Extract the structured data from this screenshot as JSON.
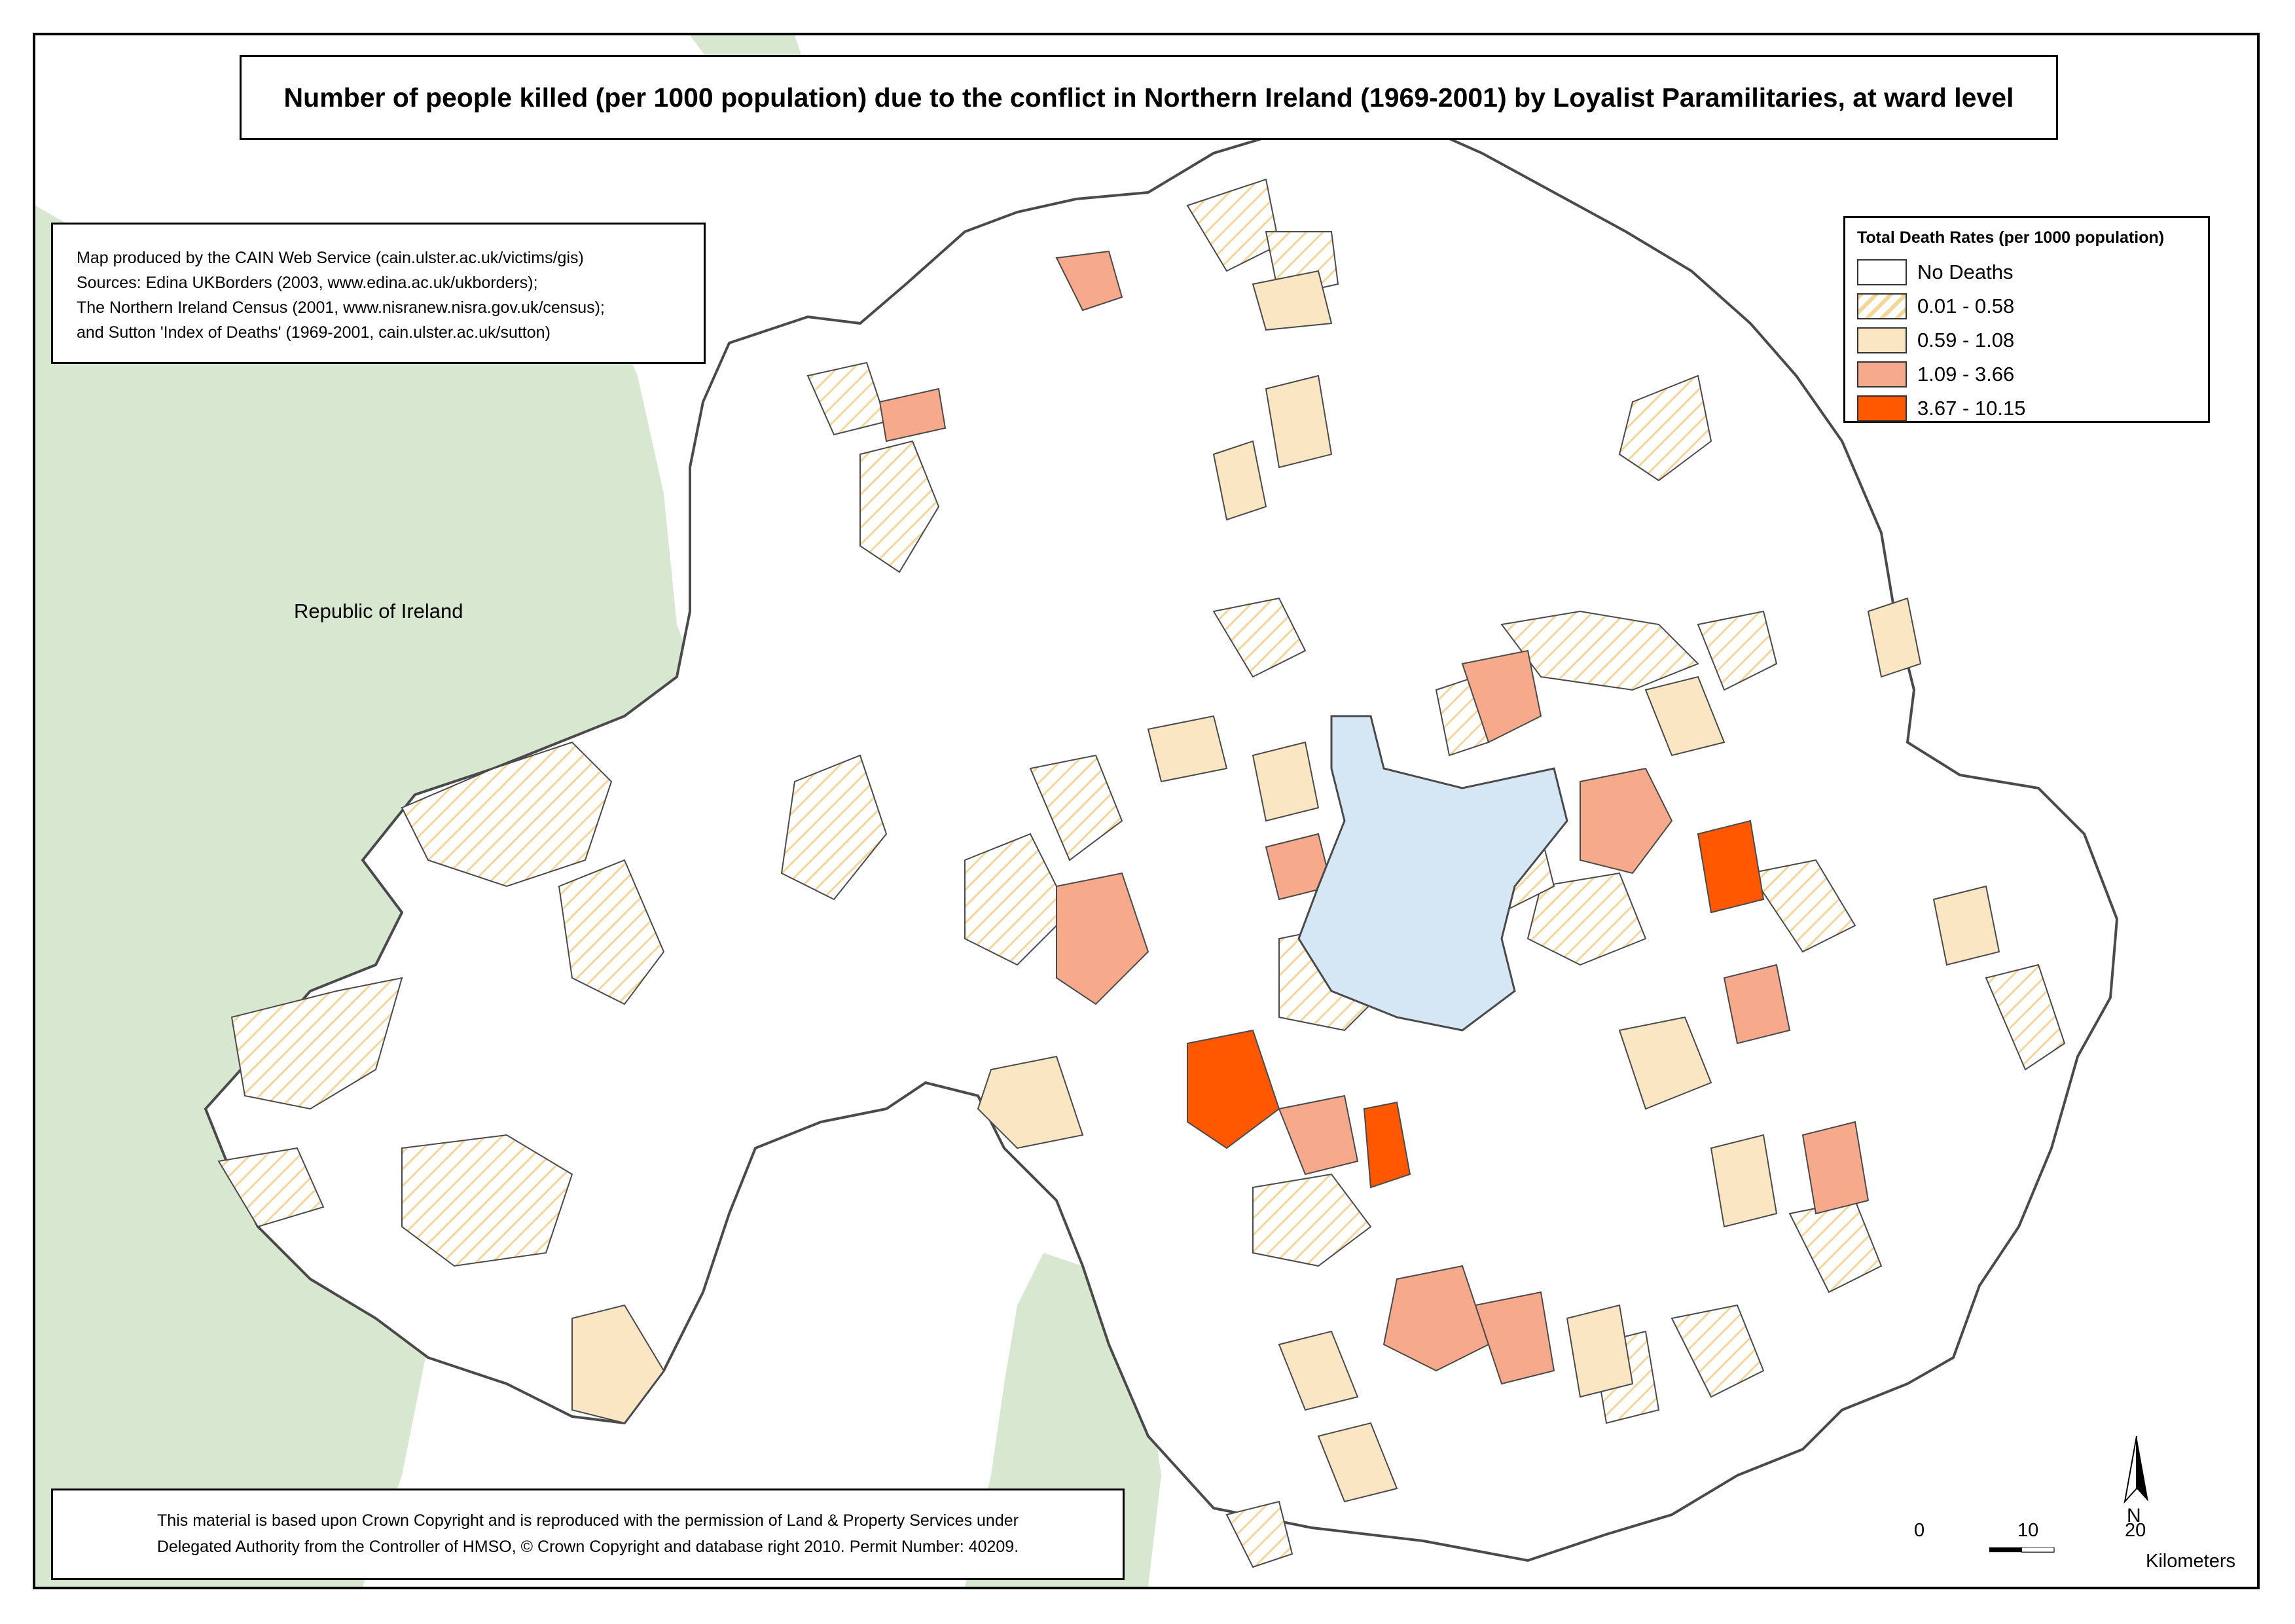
{
  "title": "Number of people killed (per 1000 population) due to the conflict in Northern Ireland (1969-2001) by Loyalist Paramilitaries, at ward level",
  "credits": [
    "Map produced by the CAIN Web Service (cain.ulster.ac.uk/victims/gis)",
    "Sources: Edina UKBorders (2003, www.edina.ac.uk/ukborders);",
    "The Northern Ireland Census (2001, www.nisranew.nisra.gov.uk/census);",
    "and Sutton 'Index of Deaths' (1969-2001, cain.ulster.ac.uk/sutton)"
  ],
  "copyright": [
    "This material is based upon Crown Copyright and is reproduced with the permission of Land & Property Services under",
    "Delegated Authority from the Controller of HMSO, © Crown Copyright and database right 2010. Permit Number: 40209."
  ],
  "legend": {
    "title": "Total Death Rates (per 1000 population)",
    "items": [
      {
        "label": "No Deaths",
        "style": "none",
        "color": "#ffffff"
      },
      {
        "label": "0.01 - 0.58",
        "style": "hatch",
        "color": "#f5dfa8"
      },
      {
        "label": "0.59 - 1.08",
        "style": "solid",
        "color": "#fae6c3"
      },
      {
        "label": "1.09 - 3.66",
        "style": "solid",
        "color": "#f7a98b"
      },
      {
        "label": "3.67 - 10.15",
        "style": "solid",
        "color": "#ff5800"
      }
    ]
  },
  "place_label": "Republic of Ireland",
  "north_label": "N",
  "scale": {
    "ticks": [
      "0",
      "10",
      "20"
    ],
    "unit": "Kilometers"
  },
  "colors": {
    "land_outside": "#d8e7d0",
    "lough": "#d5e7f5",
    "boundary": "#4a4a4a"
  }
}
